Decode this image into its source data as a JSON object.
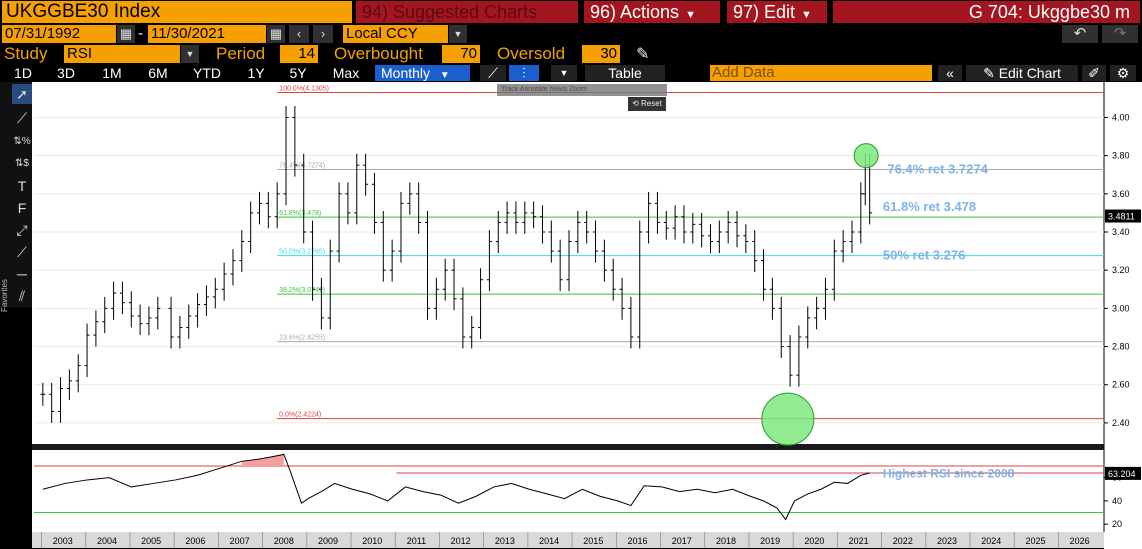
{
  "header": {
    "ticker": "UKGGBE30 Index",
    "suggested": "94) Suggested Charts",
    "actions": "96) Actions",
    "edit": "97) Edit",
    "title": "G 704: Ukggbe30 m"
  },
  "controls": {
    "start_date": "07/31/1992",
    "end_date": "11/30/2021",
    "currency": "Local CCY",
    "study_label": "Study",
    "study_value": "RSI",
    "period_label": "Period",
    "period_value": "14",
    "overbought_label": "Overbought",
    "overbought_value": "70",
    "oversold_label": "Oversold",
    "oversold_value": "30"
  },
  "ranges": [
    "1D",
    "3D",
    "1M",
    "6M",
    "YTD",
    "1Y",
    "5Y",
    "Max"
  ],
  "frequency": "Monthly",
  "toolbar": {
    "table": "Table",
    "add_data_placeholder": "Add Data",
    "edit_chart": "Edit Chart",
    "reset": "Reset",
    "favorites": "Favorites",
    "mini_items": "Track   Annotate   News   Zoom"
  },
  "colors": {
    "orange": "#f5a000",
    "red_button": "#a3161f",
    "annotation_blue": "#7fb3e8",
    "fib_red": "#e04040",
    "fib_green": "#39c439",
    "fib_cyan": "#3fd9e6",
    "circle_green": "#7ee87e"
  },
  "icons": [
    "calendar-icon",
    "arrow-left-icon",
    "arrow-right-icon",
    "pencil-icon",
    "undo-icon",
    "redo-icon",
    "line-chart-icon",
    "bar-chart-icon",
    "double-chevron-left-icon",
    "settings-icon"
  ],
  "chart_data": [
    {
      "type": "ohlc",
      "title": "",
      "x_ticks": [
        "2003",
        "2004",
        "2005",
        "2006",
        "2007",
        "2008",
        "2009",
        "2010",
        "2011",
        "2012",
        "2013",
        "2014",
        "2015",
        "2016",
        "2017",
        "2018",
        "2019",
        "2020",
        "2021",
        "2022",
        "2023",
        "2024",
        "2025",
        "2026"
      ],
      "y_ticks": [
        "4.00",
        "3.80",
        "3.60",
        "3.40",
        "3.20",
        "3.00",
        "2.80",
        "2.60",
        "2.40"
      ],
      "ylim": [
        2.3,
        4.17
      ],
      "xlim": [
        2002.8,
        2027.0
      ],
      "last_value": "3.4811",
      "fib_levels": [
        {
          "label": "100.0%(4.1305)",
          "value": 4.1305
        },
        {
          "label": "76.4%(3.7274)",
          "value": 3.7274
        },
        {
          "label": "61.8%(3.478)",
          "value": 3.478
        },
        {
          "label": "50.0%(3.2765)",
          "value": 3.2765
        },
        {
          "label": "38.2%(3.0749)",
          "value": 3.0749
        },
        {
          "label": "23.6%(2.8255)",
          "value": 2.8255
        },
        {
          "label": "0.0%(2.4224)",
          "value": 2.4224
        }
      ],
      "annotations": [
        "76.4% ret 3.7274",
        "61.8% ret 3.478",
        "50% ret 3.276"
      ],
      "series": [
        {
          "x": 2003.0,
          "v": 2.55
        },
        {
          "x": 2003.2,
          "v": 2.46
        },
        {
          "x": 2003.4,
          "v": 2.58
        },
        {
          "x": 2003.6,
          "v": 2.62
        },
        {
          "x": 2003.8,
          "v": 2.7
        },
        {
          "x": 2004.0,
          "v": 2.86
        },
        {
          "x": 2004.2,
          "v": 2.93
        },
        {
          "x": 2004.4,
          "v": 3.0
        },
        {
          "x": 2004.6,
          "v": 3.08
        },
        {
          "x": 2004.8,
          "v": 3.03
        },
        {
          "x": 2005.0,
          "v": 2.96
        },
        {
          "x": 2005.2,
          "v": 2.92
        },
        {
          "x": 2005.4,
          "v": 2.95
        },
        {
          "x": 2005.6,
          "v": 3.0
        },
        {
          "x": 2005.9,
          "v": 2.85
        },
        {
          "x": 2006.1,
          "v": 2.9
        },
        {
          "x": 2006.3,
          "v": 2.96
        },
        {
          "x": 2006.5,
          "v": 3.02
        },
        {
          "x": 2006.7,
          "v": 3.06
        },
        {
          "x": 2006.9,
          "v": 3.1
        },
        {
          "x": 2007.1,
          "v": 3.18
        },
        {
          "x": 2007.3,
          "v": 3.25
        },
        {
          "x": 2007.5,
          "v": 3.35
        },
        {
          "x": 2007.7,
          "v": 3.5
        },
        {
          "x": 2007.9,
          "v": 3.55
        },
        {
          "x": 2008.1,
          "v": 3.48
        },
        {
          "x": 2008.3,
          "v": 3.6
        },
        {
          "x": 2008.5,
          "v": 4.0
        },
        {
          "x": 2008.7,
          "v": 3.75
        },
        {
          "x": 2008.9,
          "v": 3.4
        },
        {
          "x": 2009.1,
          "v": 3.1
        },
        {
          "x": 2009.3,
          "v": 2.95
        },
        {
          "x": 2009.5,
          "v": 3.3
        },
        {
          "x": 2009.7,
          "v": 3.6
        },
        {
          "x": 2009.9,
          "v": 3.5
        },
        {
          "x": 2010.1,
          "v": 3.75
        },
        {
          "x": 2010.3,
          "v": 3.65
        },
        {
          "x": 2010.5,
          "v": 3.45
        },
        {
          "x": 2010.7,
          "v": 3.2
        },
        {
          "x": 2010.9,
          "v": 3.3
        },
        {
          "x": 2011.1,
          "v": 3.55
        },
        {
          "x": 2011.3,
          "v": 3.6
        },
        {
          "x": 2011.5,
          "v": 3.45
        },
        {
          "x": 2011.7,
          "v": 3.0
        },
        {
          "x": 2011.9,
          "v": 3.1
        },
        {
          "x": 2012.1,
          "v": 3.2
        },
        {
          "x": 2012.3,
          "v": 3.05
        },
        {
          "x": 2012.5,
          "v": 2.85
        },
        {
          "x": 2012.7,
          "v": 2.9
        },
        {
          "x": 2012.9,
          "v": 3.15
        },
        {
          "x": 2013.1,
          "v": 3.35
        },
        {
          "x": 2013.3,
          "v": 3.45
        },
        {
          "x": 2013.5,
          "v": 3.5
        },
        {
          "x": 2013.7,
          "v": 3.45
        },
        {
          "x": 2013.9,
          "v": 3.5
        },
        {
          "x": 2014.1,
          "v": 3.48
        },
        {
          "x": 2014.3,
          "v": 3.4
        },
        {
          "x": 2014.5,
          "v": 3.3
        },
        {
          "x": 2014.7,
          "v": 3.15
        },
        {
          "x": 2014.9,
          "v": 3.35
        },
        {
          "x": 2015.1,
          "v": 3.45
        },
        {
          "x": 2015.3,
          "v": 3.4
        },
        {
          "x": 2015.5,
          "v": 3.3
        },
        {
          "x": 2015.7,
          "v": 3.2
        },
        {
          "x": 2015.9,
          "v": 3.1
        },
        {
          "x": 2016.1,
          "v": 3.0
        },
        {
          "x": 2016.3,
          "v": 2.85
        },
        {
          "x": 2016.5,
          "v": 3.4
        },
        {
          "x": 2016.7,
          "v": 3.55
        },
        {
          "x": 2016.9,
          "v": 3.45
        },
        {
          "x": 2017.1,
          "v": 3.42
        },
        {
          "x": 2017.3,
          "v": 3.48
        },
        {
          "x": 2017.5,
          "v": 3.4
        },
        {
          "x": 2017.7,
          "v": 3.44
        },
        {
          "x": 2017.9,
          "v": 3.38
        },
        {
          "x": 2018.1,
          "v": 3.35
        },
        {
          "x": 2018.3,
          "v": 3.4
        },
        {
          "x": 2018.5,
          "v": 3.45
        },
        {
          "x": 2018.7,
          "v": 3.38
        },
        {
          "x": 2018.9,
          "v": 3.35
        },
        {
          "x": 2019.1,
          "v": 3.25
        },
        {
          "x": 2019.3,
          "v": 3.1
        },
        {
          "x": 2019.5,
          "v": 3.0
        },
        {
          "x": 2019.7,
          "v": 2.8
        },
        {
          "x": 2019.9,
          "v": 2.65
        },
        {
          "x": 2020.1,
          "v": 2.85
        },
        {
          "x": 2020.3,
          "v": 2.95
        },
        {
          "x": 2020.5,
          "v": 3.0
        },
        {
          "x": 2020.7,
          "v": 3.1
        },
        {
          "x": 2020.9,
          "v": 3.3
        },
        {
          "x": 2021.1,
          "v": 3.35
        },
        {
          "x": 2021.3,
          "v": 3.4
        },
        {
          "x": 2021.5,
          "v": 3.6
        },
        {
          "x": 2021.6,
          "v": 3.75
        },
        {
          "x": 2021.7,
          "v": 3.5
        }
      ]
    },
    {
      "type": "line",
      "name": "RSI",
      "y_ticks": [
        "60",
        "40",
        "20"
      ],
      "ylim": [
        15,
        82
      ],
      "overbought": 70,
      "oversold": 30,
      "last_value": "63.204",
      "annotation": "Highest RSI since 2008",
      "series": [
        {
          "x": 2003.0,
          "v": 50
        },
        {
          "x": 2003.5,
          "v": 55
        },
        {
          "x": 2004.0,
          "v": 58
        },
        {
          "x": 2004.5,
          "v": 60
        },
        {
          "x": 2005.0,
          "v": 52
        },
        {
          "x": 2005.5,
          "v": 55
        },
        {
          "x": 2006.0,
          "v": 58
        },
        {
          "x": 2006.5,
          "v": 62
        },
        {
          "x": 2007.0,
          "v": 68
        },
        {
          "x": 2007.5,
          "v": 74
        },
        {
          "x": 2007.9,
          "v": 76
        },
        {
          "x": 2008.2,
          "v": 78
        },
        {
          "x": 2008.45,
          "v": 80
        },
        {
          "x": 2008.6,
          "v": 65
        },
        {
          "x": 2008.85,
          "v": 38
        },
        {
          "x": 2009.0,
          "v": 42
        },
        {
          "x": 2009.3,
          "v": 48
        },
        {
          "x": 2009.6,
          "v": 55
        },
        {
          "x": 2010.0,
          "v": 50
        },
        {
          "x": 2010.4,
          "v": 46
        },
        {
          "x": 2010.8,
          "v": 40
        },
        {
          "x": 2011.2,
          "v": 52
        },
        {
          "x": 2011.6,
          "v": 48
        },
        {
          "x": 2012.0,
          "v": 45
        },
        {
          "x": 2012.4,
          "v": 38
        },
        {
          "x": 2012.8,
          "v": 44
        },
        {
          "x": 2013.2,
          "v": 52
        },
        {
          "x": 2013.6,
          "v": 55
        },
        {
          "x": 2014.0,
          "v": 50
        },
        {
          "x": 2014.4,
          "v": 46
        },
        {
          "x": 2014.8,
          "v": 42
        },
        {
          "x": 2015.2,
          "v": 50
        },
        {
          "x": 2015.6,
          "v": 44
        },
        {
          "x": 2016.0,
          "v": 40
        },
        {
          "x": 2016.3,
          "v": 36
        },
        {
          "x": 2016.6,
          "v": 53
        },
        {
          "x": 2017.0,
          "v": 52
        },
        {
          "x": 2017.4,
          "v": 48
        },
        {
          "x": 2017.8,
          "v": 50
        },
        {
          "x": 2018.2,
          "v": 47
        },
        {
          "x": 2018.6,
          "v": 50
        },
        {
          "x": 2019.0,
          "v": 44
        },
        {
          "x": 2019.3,
          "v": 40
        },
        {
          "x": 2019.6,
          "v": 34
        },
        {
          "x": 2019.8,
          "v": 24
        },
        {
          "x": 2020.0,
          "v": 40
        },
        {
          "x": 2020.3,
          "v": 46
        },
        {
          "x": 2020.6,
          "v": 50
        },
        {
          "x": 2020.9,
          "v": 56
        },
        {
          "x": 2021.2,
          "v": 55
        },
        {
          "x": 2021.5,
          "v": 62
        },
        {
          "x": 2021.7,
          "v": 64
        }
      ]
    }
  ]
}
